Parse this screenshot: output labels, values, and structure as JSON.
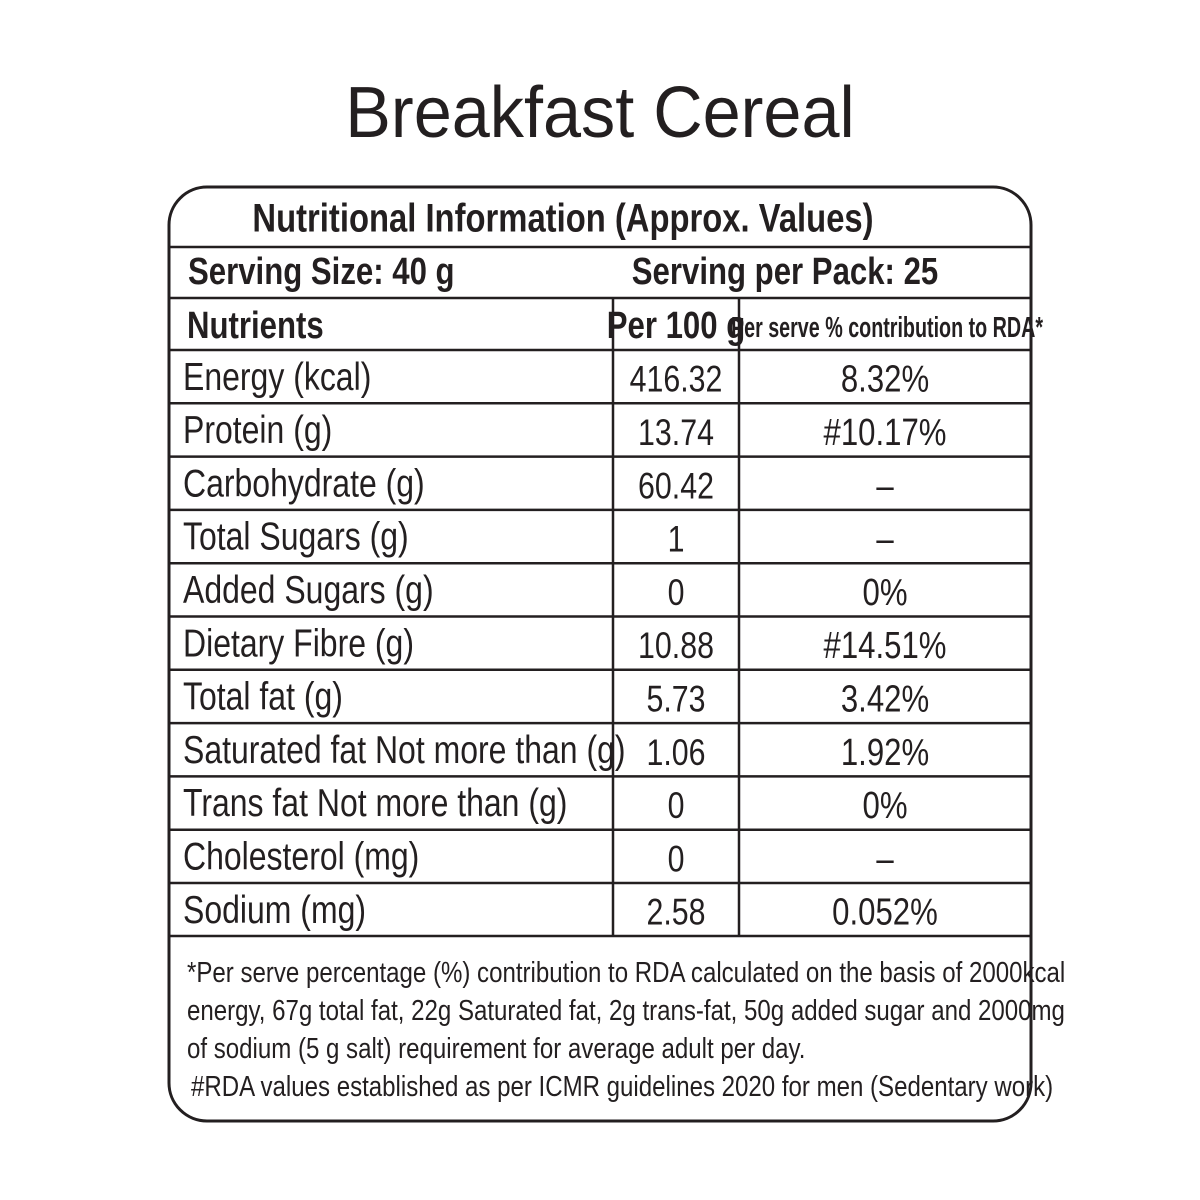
{
  "title": "Breakfast Cereal",
  "table": {
    "heading": "Nutritional Information (Approx. Values)",
    "serving_size": "Serving Size: 40 g",
    "servings_per_pack": "Serving per Pack: 25",
    "columns": [
      "Nutrients",
      "Per 100 g",
      "Per serve % contribution to RDA*"
    ],
    "rows": [
      [
        "Energy (kcal)",
        "416.32",
        "8.32%"
      ],
      [
        "Protein (g)",
        "13.74",
        "#10.17%"
      ],
      [
        "Carbohydrate (g)",
        "60.42",
        "–"
      ],
      [
        "Total Sugars (g)",
        "1",
        "–"
      ],
      [
        "Added Sugars (g)",
        "0",
        "0%"
      ],
      [
        "Dietary Fibre (g)",
        "10.88",
        "#14.51%"
      ],
      [
        "Total fat (g)",
        "5.73",
        "3.42%"
      ],
      [
        "Saturated fat Not more than (g)",
        "1.06",
        "1.92%"
      ],
      [
        "Trans fat Not more than (g)",
        "0",
        "0%"
      ],
      [
        "Cholesterol (mg)",
        "0",
        "–"
      ],
      [
        "Sodium (mg)",
        "2.58",
        "0.052%"
      ]
    ]
  },
  "footnotes": [
    "*Per serve percentage (%) contribution to RDA calculated on the basis of 2000kcal",
    "energy, 67g total fat, 22g Saturated fat, 2g trans-fat, 50g added sugar and 2000mg",
    "of sodium (5 g salt) requirement for average adult per day.",
    "#RDA values established as per ICMR guidelines 2020 for men (Sedentary work)"
  ]
}
